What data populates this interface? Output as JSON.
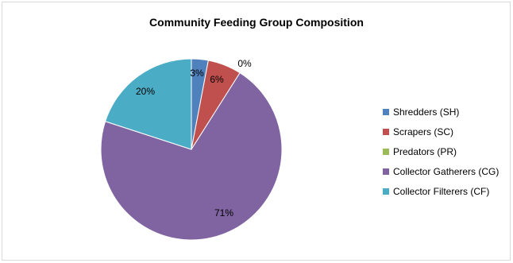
{
  "chart_data": {
    "type": "pie",
    "title": "Community Feeding Group Composition",
    "slices": [
      {
        "name": "Shredders (SH)",
        "value": 3,
        "label": "3%",
        "color": "#4f81bd"
      },
      {
        "name": "Scrapers (SC)",
        "value": 6,
        "label": "6%",
        "color": "#c0504d"
      },
      {
        "name": "Predators (PR)",
        "value": 0,
        "label": "0%",
        "color": "#9bbb59"
      },
      {
        "name": "Collector Gatherers (CG)",
        "value": 71,
        "label": "71%",
        "color": "#8064a2"
      },
      {
        "name": "Collector Filterers (CF)",
        "value": 20,
        "label": "20%",
        "color": "#4bacc6"
      }
    ],
    "legend_position": "right"
  }
}
